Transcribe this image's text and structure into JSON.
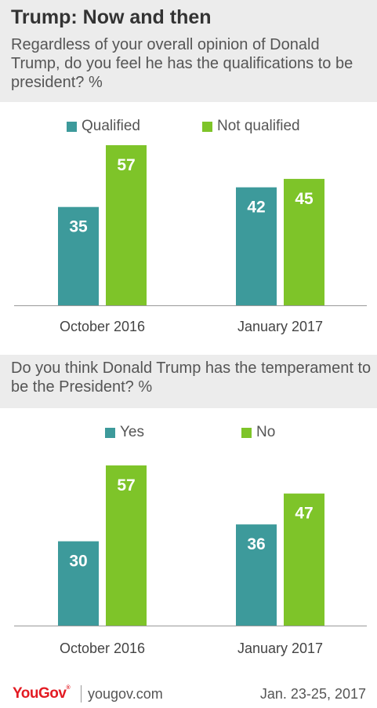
{
  "title": "Trump: Now and then",
  "colors": {
    "series1": "#3d9a9b",
    "series2": "#7ec429",
    "band": "#ececec"
  },
  "chart_data": [
    {
      "type": "bar",
      "subtitle": "Regardless of your overall opinion of Donald Trump, do you feel he has the qualifications to be president? %",
      "categories": [
        "October 2016",
        "January 2017"
      ],
      "series": [
        {
          "name": "Qualified",
          "values": [
            35,
            42
          ]
        },
        {
          "name": "Not qualified",
          "values": [
            57,
            45
          ]
        }
      ],
      "ylim": [
        0,
        60
      ]
    },
    {
      "type": "bar",
      "subtitle": "Do you think Donald Trump has the temperament to be the President? %",
      "categories": [
        "October 2016",
        "January 2017"
      ],
      "series": [
        {
          "name": "Yes",
          "values": [
            30,
            36
          ]
        },
        {
          "name": "No",
          "values": [
            57,
            47
          ]
        }
      ],
      "ylim": [
        0,
        60
      ]
    }
  ],
  "footer": {
    "brand": "YouGov",
    "site": "yougov.com",
    "date": "Jan. 23-25, 2017"
  }
}
